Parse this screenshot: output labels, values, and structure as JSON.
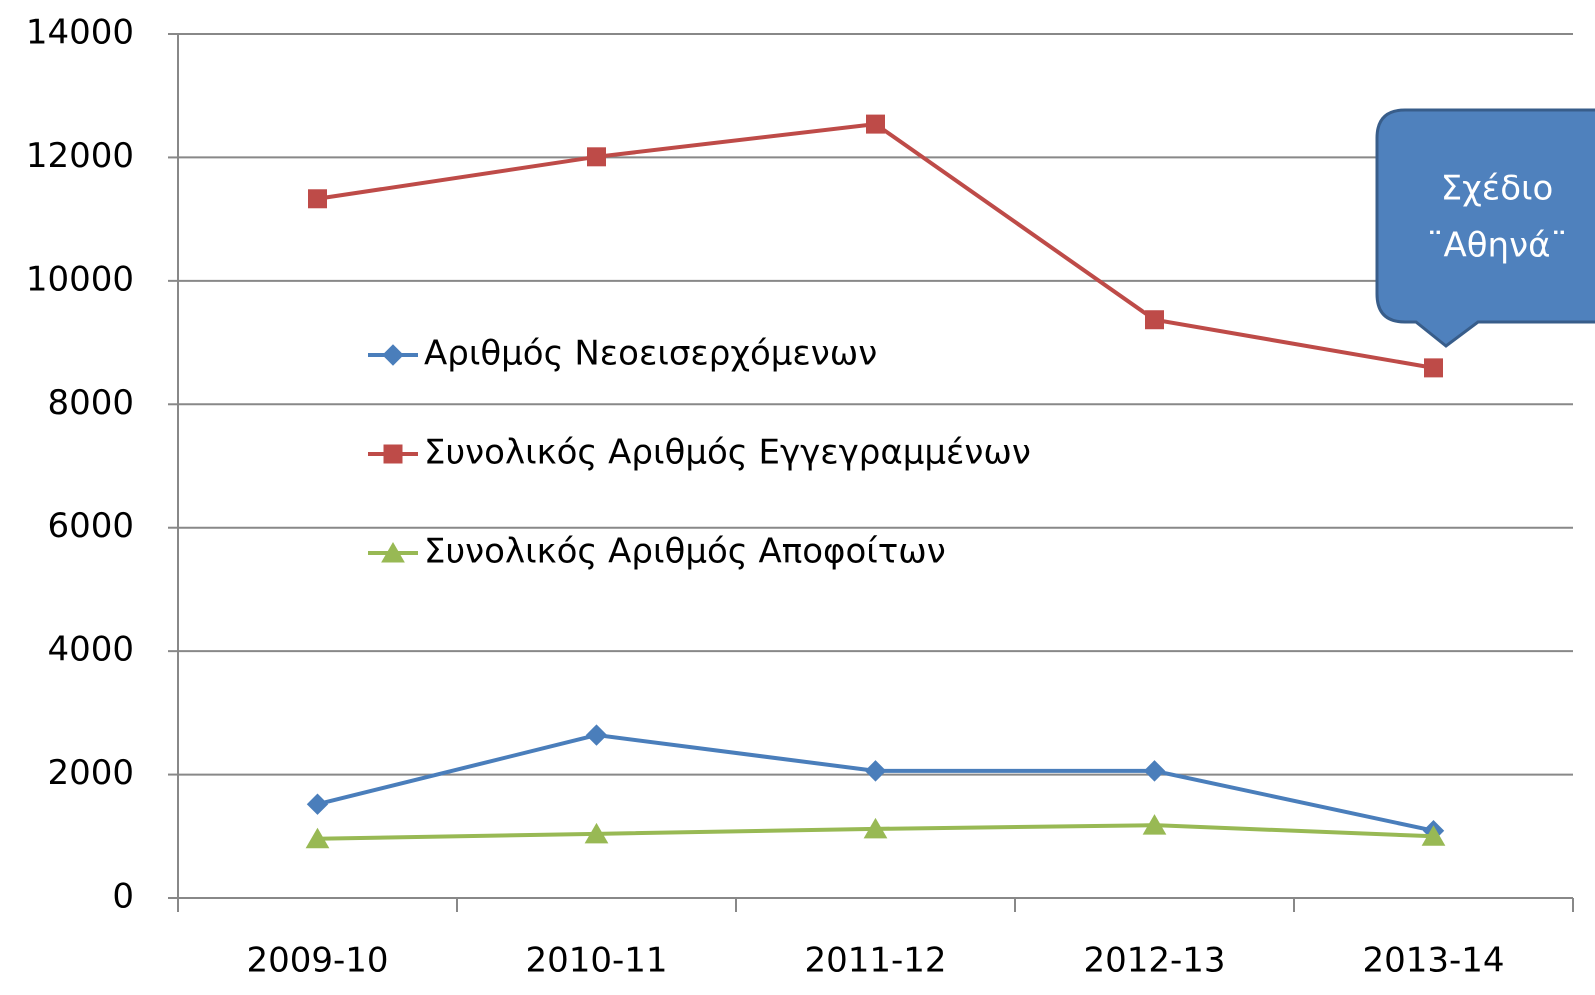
{
  "chart_data": {
    "type": "line",
    "categories": [
      "2009-10",
      "2010-11",
      "2011-12",
      "2012-13",
      "2013-14"
    ],
    "series": [
      {
        "name": "Αριθμός Νεοεισερχόμενων",
        "color": "#4a7ebb",
        "marker": "diamond",
        "values": [
          1520,
          2640,
          2060,
          2060,
          1090
        ]
      },
      {
        "name": "Συνολικός Αριθμός Εγγεγραμμένων",
        "color": "#be4b48",
        "marker": "square",
        "values": [
          11330,
          12010,
          12540,
          9370,
          8590
        ]
      },
      {
        "name": "Συνολικός Αριθμός Αποφοίτων",
        "color": "#98b954",
        "marker": "triangle",
        "values": [
          960,
          1040,
          1120,
          1180,
          1000
        ]
      }
    ],
    "ylim": [
      0,
      14000
    ],
    "yticks": [
      0,
      2000,
      4000,
      6000,
      8000,
      10000,
      12000,
      14000
    ],
    "grid": true,
    "legend": "inside",
    "annotation": [
      "Σχέδιο",
      "¨Αθηνά¨"
    ]
  }
}
